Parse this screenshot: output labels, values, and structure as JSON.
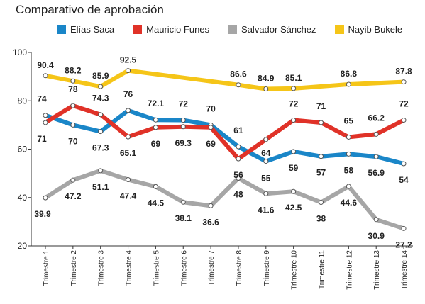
{
  "chart_data": {
    "type": "line",
    "title": "Comparativo de aprobación",
    "xlabel": "",
    "ylabel": "",
    "ylim": [
      20,
      100
    ],
    "yticks": [
      20,
      40,
      60,
      80,
      100
    ],
    "grid": false,
    "legend_position": "top",
    "categories": [
      "Trimestre 1",
      "Trimestre 2",
      "Trimestre 3",
      "Trimestre 4",
      "Trimestre 5",
      "Trimestre 6",
      "Trimestre 7",
      "Trimestre 8",
      "Trimestre 9",
      "Trimestre 10",
      "Trimestre 11",
      "Trimestre 12",
      "Trimestre 13",
      "Trimestre 14"
    ],
    "series": [
      {
        "name": "Elías Saca",
        "color": "#1a86c8",
        "values": [
          74,
          70,
          67.3,
          76,
          72.1,
          72,
          70,
          61,
          55,
          59,
          57,
          58,
          56.9,
          54
        ],
        "labels": [
          "74",
          "70",
          "67.3",
          "76",
          "72.1",
          "72",
          "70",
          "61",
          "55",
          "59",
          "57",
          "58",
          "56.9",
          "54"
        ]
      },
      {
        "name": "Mauricio Funes",
        "color": "#e03228",
        "values": [
          71,
          78,
          74.3,
          65.1,
          69,
          69.3,
          69,
          56,
          64,
          72,
          71,
          65,
          66.2,
          72
        ],
        "labels": [
          "71",
          "78",
          "74.3",
          "65.1",
          "69",
          "69.3",
          "69",
          "56",
          "64",
          "72",
          "71",
          "65",
          "66.2",
          "72"
        ]
      },
      {
        "name": "Salvador Sánchez",
        "color": "#a6a6a6",
        "values": [
          39.9,
          47.2,
          51.1,
          47.4,
          44.5,
          38.1,
          36.6,
          48,
          41.6,
          42.5,
          38,
          44.6,
          30.9,
          27.2
        ],
        "labels": [
          "39.9",
          "47.2",
          "51.1",
          "47.4",
          "44.5",
          "38.1",
          "36.6",
          "48",
          "41.6",
          "42.5",
          "38",
          "44.6",
          "30.9",
          "27.2"
        ]
      },
      {
        "name": "Nayib Bukele",
        "color": "#f5c518",
        "values": [
          90.4,
          88.2,
          85.9,
          92.5,
          null,
          null,
          null,
          86.6,
          84.9,
          85.1,
          null,
          86.8,
          null,
          87.8
        ],
        "labels": [
          "90.4",
          "88.2",
          "85.9",
          "92.5",
          "",
          "",
          "",
          "86.6",
          "84.9",
          "85.1",
          "",
          "86.8",
          "",
          "87.8"
        ]
      }
    ]
  }
}
